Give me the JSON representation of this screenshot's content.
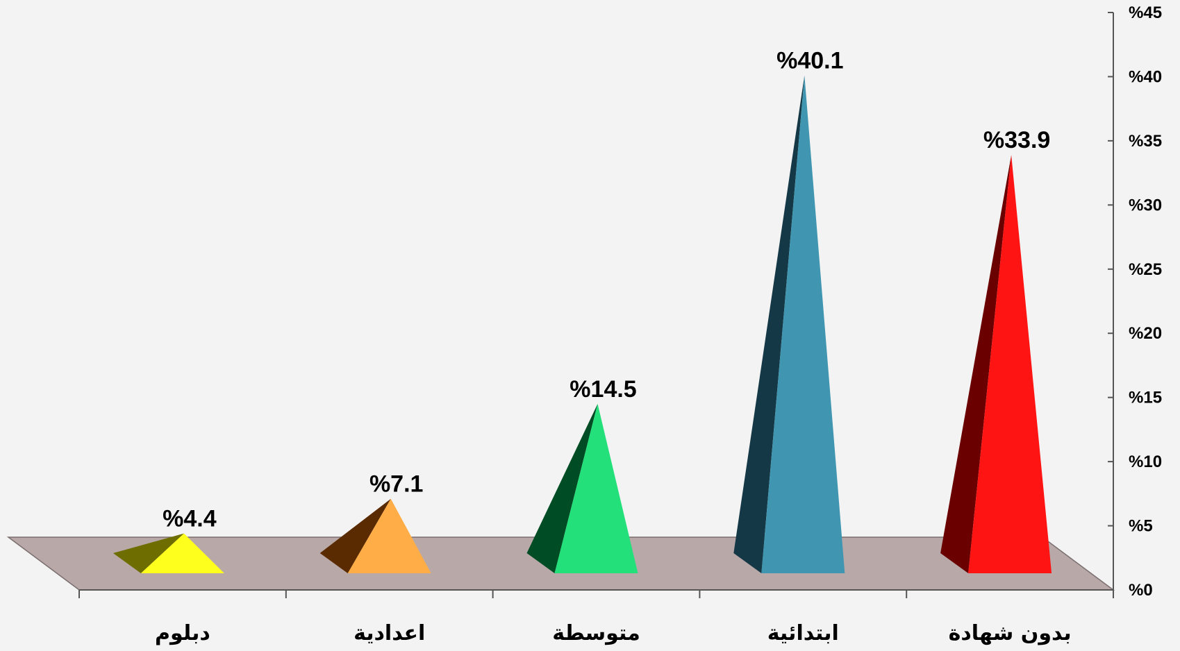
{
  "chart_data": {
    "type": "bar",
    "categories": [
      "بدون شهادة",
      "ابتدائية",
      "متوسطة",
      "اعدادية",
      "دبلوم"
    ],
    "values": [
      33.9,
      40.1,
      14.5,
      7.1,
      4.4
    ],
    "data_labels": [
      "%33.9",
      "%40.1",
      "%14.5",
      "%7.1",
      "%4.4"
    ],
    "ylim": [
      0,
      45
    ],
    "y_ticks": [
      0,
      5,
      10,
      15,
      20,
      25,
      30,
      35,
      40,
      45
    ],
    "y_tick_labels": [
      "%0",
      "%5",
      "%10",
      "%15",
      "%20",
      "%25",
      "%30",
      "%35",
      "%40",
      "%45"
    ],
    "y_axis_position": "right",
    "grid": false,
    "legend": "none",
    "colors": [
      {
        "front": "#ff1414",
        "side": "#6b0000"
      },
      {
        "front": "#4096b0",
        "side": "#143845"
      },
      {
        "front": "#24e07a",
        "side": "#004d25"
      },
      {
        "front": "#ffad47",
        "side": "#5a2a00"
      },
      {
        "front": "#ffff1e",
        "side": "#6e6e00"
      }
    ],
    "floor_color": "#b8a8a8"
  }
}
